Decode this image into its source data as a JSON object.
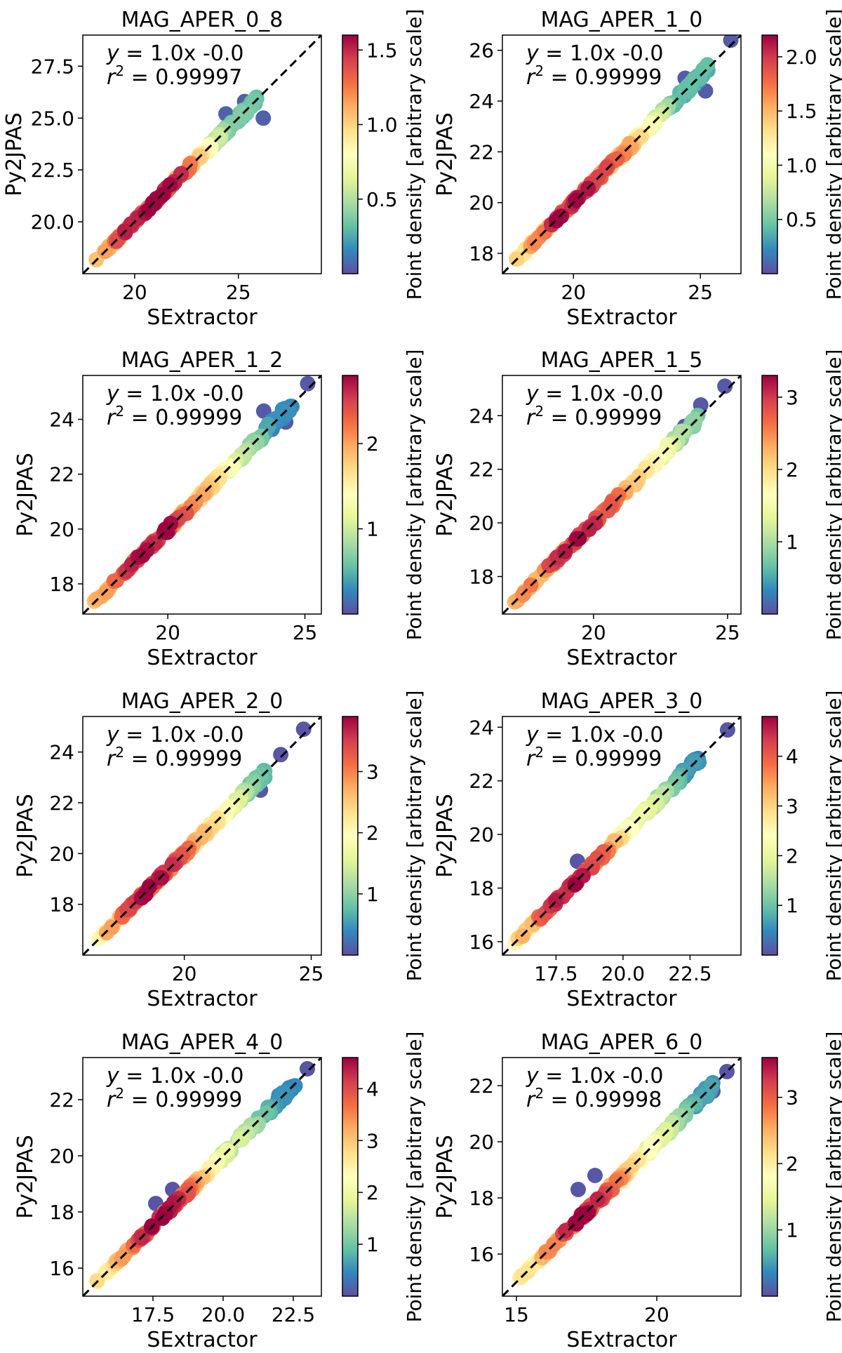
{
  "chart_data": [
    {
      "type": "scatter",
      "title": "MAG_APER_0_8",
      "xlabel": "SExtractor",
      "ylabel": "Py2JPAS",
      "xlim": [
        17.5,
        29.0
      ],
      "ylim": [
        17.5,
        29.0
      ],
      "xticks": [
        "20",
        "25"
      ],
      "yticks": [
        "20.0",
        "22.5",
        "25.0",
        "27.5"
      ],
      "fit": {
        "equation": "= 1.0x -0.0",
        "r2": "= 0.99997"
      },
      "colorbar": {
        "label": "Point density [arbitrary scale]",
        "ticks": [
          "0.5",
          "1.0",
          "1.5"
        ],
        "max": 1.6
      },
      "scatter_range": [
        18.0,
        25.9
      ],
      "outliers": [
        [
          26.2,
          25.0
        ],
        [
          24.4,
          25.2
        ],
        [
          25.3,
          25.8
        ]
      ],
      "hotspots": [
        [
          18.5,
          1.1
        ],
        [
          19.8,
          1.5
        ],
        [
          21.0,
          1.55
        ],
        [
          22.3,
          1.35
        ],
        [
          23.2,
          0.9
        ],
        [
          24.5,
          0.35
        ]
      ]
    },
    {
      "type": "scatter",
      "title": "MAG_APER_1_0",
      "xlabel": "SExtractor",
      "ylabel": "Py2JPAS",
      "xlim": [
        17.2,
        26.6
      ],
      "ylim": [
        17.2,
        26.6
      ],
      "xticks": [
        "20",
        "25"
      ],
      "yticks": [
        "18",
        "20",
        "22",
        "24",
        "26"
      ],
      "fit": {
        "equation": "= 1.0x -0.0",
        "r2": "= 0.99999"
      },
      "colorbar": {
        "label": "Point density [arbitrary scale]",
        "ticks": [
          "0.5",
          "1.0",
          "1.5",
          "2.0"
        ],
        "max": 2.2
      },
      "scatter_range": [
        17.6,
        25.3
      ],
      "outliers": [
        [
          26.2,
          26.4
        ],
        [
          25.2,
          24.4
        ],
        [
          24.4,
          24.9
        ]
      ],
      "hotspots": [
        [
          18.0,
          1.3
        ],
        [
          19.5,
          2.1
        ],
        [
          21.0,
          1.9
        ],
        [
          22.5,
          1.4
        ],
        [
          24.0,
          0.4
        ]
      ]
    },
    {
      "type": "scatter",
      "title": "MAG_APER_1_2",
      "xlabel": "SExtractor",
      "ylabel": "Py2JPAS",
      "xlim": [
        16.9,
        25.6
      ],
      "ylim": [
        16.9,
        25.6
      ],
      "xticks": [
        "20",
        "25"
      ],
      "yticks": [
        "18",
        "20",
        "22",
        "24"
      ],
      "fit": {
        "equation": "= 1.0x -0.0",
        "r2": "= 0.99999"
      },
      "colorbar": {
        "label": "Point density [arbitrary scale]",
        "ticks": [
          "1",
          "2"
        ],
        "max": 2.8
      },
      "scatter_range": [
        17.3,
        24.6
      ],
      "outliers": [
        [
          25.1,
          25.3
        ],
        [
          24.3,
          23.9
        ],
        [
          23.5,
          24.3
        ]
      ],
      "hotspots": [
        [
          17.5,
          1.8
        ],
        [
          18.5,
          2.4
        ],
        [
          19.8,
          2.7
        ],
        [
          21.0,
          2.0
        ],
        [
          22.5,
          1.2
        ],
        [
          23.8,
          0.3
        ]
      ]
    },
    {
      "type": "scatter",
      "title": "MAG_APER_1_5",
      "xlabel": "SExtractor",
      "ylabel": "Py2JPAS",
      "xlim": [
        16.6,
        25.5
      ],
      "ylim": [
        16.6,
        25.5
      ],
      "xticks": [
        "20",
        "25"
      ],
      "yticks": [
        "18",
        "20",
        "22",
        "24"
      ],
      "fit": {
        "equation": "= 1.0x -0.0",
        "r2": "= 0.99999"
      },
      "colorbar": {
        "label": "Point density [arbitrary scale]",
        "ticks": [
          "1",
          "2",
          "3"
        ],
        "max": 3.3
      },
      "scatter_range": [
        17.0,
        23.9
      ],
      "outliers": [
        [
          24.9,
          25.1
        ],
        [
          24.0,
          24.4
        ],
        [
          23.4,
          23.6
        ]
      ],
      "hotspots": [
        [
          17.2,
          2.2
        ],
        [
          18.0,
          2.5
        ],
        [
          19.5,
          3.2
        ],
        [
          21.0,
          2.4
        ],
        [
          22.5,
          1.5
        ],
        [
          23.5,
          0.8
        ]
      ]
    },
    {
      "type": "scatter",
      "title": "MAG_APER_2_0",
      "xlabel": "SExtractor",
      "ylabel": "Py2JPAS",
      "xlim": [
        16.0,
        25.4
      ],
      "ylim": [
        16.0,
        25.4
      ],
      "xticks": [
        "20",
        "25"
      ],
      "yticks": [
        "18",
        "20",
        "22",
        "24"
      ],
      "fit": {
        "equation": "= 1.0x -0.0",
        "r2": "= 0.99999"
      },
      "colorbar": {
        "label": "Point density [arbitrary scale]",
        "ticks": [
          "1",
          "2",
          "3"
        ],
        "max": 3.9
      },
      "scatter_range": [
        16.6,
        23.2
      ],
      "outliers": [
        [
          24.7,
          24.9
        ],
        [
          23.8,
          23.9
        ],
        [
          23.0,
          22.5
        ]
      ],
      "hotspots": [
        [
          16.8,
          2.5
        ],
        [
          17.8,
          3.2
        ],
        [
          18.8,
          3.8
        ],
        [
          20.0,
          3.0
        ],
        [
          21.5,
          2.0
        ],
        [
          22.8,
          0.8
        ]
      ]
    },
    {
      "type": "scatter",
      "title": "MAG_APER_3_0",
      "xlabel": "SExtractor",
      "ylabel": "Py2JPAS",
      "xlim": [
        15.5,
        24.4
      ],
      "ylim": [
        15.5,
        24.4
      ],
      "xticks": [
        "17.5",
        "20.0",
        "22.5"
      ],
      "yticks": [
        "16",
        "18",
        "20",
        "22",
        "24"
      ],
      "fit": {
        "equation": "= 1.0x -0.0",
        "r2": "= 0.99999"
      },
      "colorbar": {
        "label": "Point density [arbitrary scale]",
        "ticks": [
          "1",
          "2",
          "3",
          "4"
        ],
        "max": 4.8
      },
      "scatter_range": [
        15.9,
        22.9
      ],
      "outliers": [
        [
          23.9,
          23.9
        ],
        [
          22.7,
          22.8
        ],
        [
          18.3,
          19.0
        ]
      ],
      "hotspots": [
        [
          16.5,
          3.0
        ],
        [
          17.3,
          4.2
        ],
        [
          18.3,
          4.7
        ],
        [
          19.3,
          3.6
        ],
        [
          20.3,
          2.2
        ],
        [
          21.5,
          1.5
        ],
        [
          22.3,
          0.6
        ]
      ]
    },
    {
      "type": "scatter",
      "title": "MAG_APER_4_0",
      "xlabel": "SExtractor",
      "ylabel": "Py2JPAS",
      "xlim": [
        15.0,
        23.5
      ],
      "ylim": [
        15.0,
        23.5
      ],
      "xticks": [
        "17.5",
        "20.0",
        "22.5"
      ],
      "yticks": [
        "16",
        "18",
        "20",
        "22"
      ],
      "fit": {
        "equation": "= 1.0x -0.0",
        "r2": "= 0.99999"
      },
      "colorbar": {
        "label": "Point density [arbitrary scale]",
        "ticks": [
          "1",
          "2",
          "3",
          "4"
        ],
        "max": 4.6
      },
      "scatter_range": [
        15.5,
        22.6
      ],
      "outliers": [
        [
          23.0,
          23.1
        ],
        [
          17.6,
          18.3
        ],
        [
          18.2,
          18.8
        ]
      ],
      "hotspots": [
        [
          16.0,
          2.6
        ],
        [
          16.8,
          3.6
        ],
        [
          17.6,
          4.5
        ],
        [
          18.6,
          3.8
        ],
        [
          19.8,
          2.0
        ],
        [
          21.0,
          1.4
        ],
        [
          22.0,
          0.5
        ]
      ]
    },
    {
      "type": "scatter",
      "title": "MAG_APER_6_0",
      "xlabel": "SExtractor",
      "ylabel": "Py2JPAS",
      "xlim": [
        14.5,
        23.0
      ],
      "ylim": [
        14.5,
        23.0
      ],
      "xticks": [
        "15",
        "20"
      ],
      "yticks": [
        "16",
        "18",
        "20",
        "22"
      ],
      "fit": {
        "equation": "= 1.0x -0.0",
        "r2": "= 0.99998"
      },
      "colorbar": {
        "label": "Point density [arbitrary scale]",
        "ticks": [
          "1",
          "2",
          "3"
        ],
        "max": 3.6
      },
      "scatter_range": [
        15.0,
        22.0
      ],
      "outliers": [
        [
          22.5,
          22.5
        ],
        [
          22.0,
          21.8
        ],
        [
          17.2,
          18.3
        ],
        [
          17.8,
          18.8
        ]
      ],
      "hotspots": [
        [
          15.5,
          2.0
        ],
        [
          16.4,
          2.8
        ],
        [
          17.3,
          3.5
        ],
        [
          18.2,
          3.0
        ],
        [
          19.5,
          1.8
        ],
        [
          20.5,
          1.2
        ],
        [
          21.5,
          0.5
        ]
      ]
    }
  ]
}
